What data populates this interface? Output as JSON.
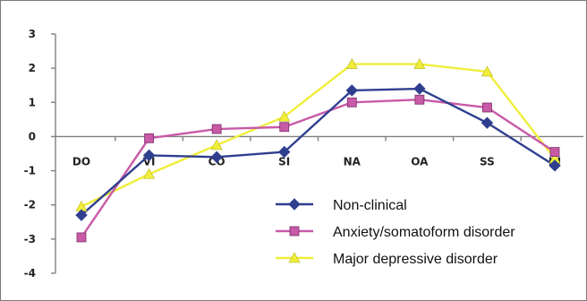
{
  "chart_data": {
    "type": "line",
    "title": "",
    "xlabel": "",
    "ylabel": "",
    "categories": [
      "DO",
      "VI",
      "CO",
      "SI",
      "NA",
      "OA",
      "SS",
      "IU"
    ],
    "ylim": [
      -4,
      3
    ],
    "yticks": [
      "3",
      "2",
      "1",
      "0",
      "-1",
      "-2",
      "-3",
      "-4"
    ],
    "grid": false,
    "legend_position": "bottom-right",
    "series": [
      {
        "name": "Non-clinical",
        "color": "#2f3f8f",
        "marker": "diamond",
        "values": [
          -2.3,
          -0.55,
          -0.6,
          -0.45,
          1.35,
          1.4,
          0.4,
          -0.85
        ]
      },
      {
        "name": "Anxiety/somatoform disorder",
        "color": "#c85aa8",
        "marker": "square",
        "values": [
          -2.95,
          -0.05,
          0.22,
          0.28,
          1.0,
          1.08,
          0.85,
          -0.45
        ]
      },
      {
        "name": "Major depressive disorder",
        "color": "#f0ee3a",
        "marker": "triangle",
        "values": [
          -2.05,
          -1.1,
          -0.25,
          0.58,
          2.12,
          2.12,
          1.9,
          -0.65
        ]
      }
    ]
  }
}
